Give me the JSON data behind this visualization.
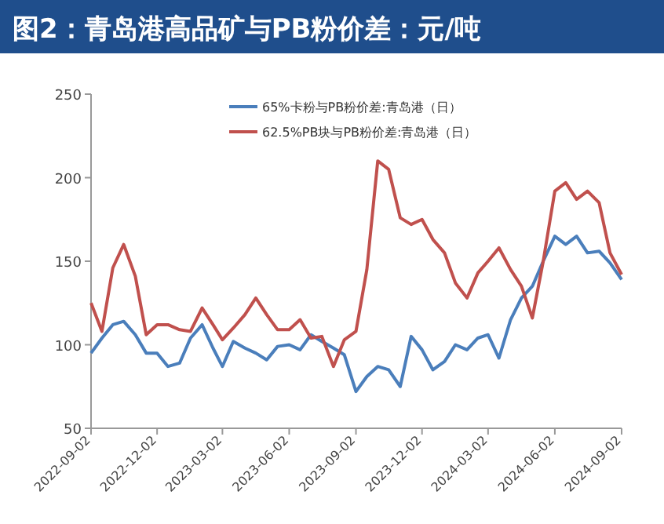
{
  "chart_data": {
    "type": "line",
    "title": "图2：青岛港高品矿与PB粉价差：元/吨",
    "x": [
      "2022-09-02",
      "2022-09-17",
      "2022-10-02",
      "2022-10-17",
      "2022-11-02",
      "2022-11-17",
      "2022-12-02",
      "2022-12-17",
      "2023-01-02",
      "2023-01-17",
      "2023-02-02",
      "2023-02-17",
      "2023-03-02",
      "2023-03-17",
      "2023-04-02",
      "2023-04-17",
      "2023-05-02",
      "2023-05-17",
      "2023-06-02",
      "2023-06-17",
      "2023-07-02",
      "2023-07-17",
      "2023-08-02",
      "2023-08-17",
      "2023-09-02",
      "2023-09-17",
      "2023-10-02",
      "2023-10-17",
      "2023-11-02",
      "2023-11-17",
      "2023-12-02",
      "2023-12-17",
      "2024-01-02",
      "2024-01-17",
      "2024-02-02",
      "2024-02-17",
      "2024-03-02",
      "2024-03-17",
      "2024-04-02",
      "2024-04-17",
      "2024-05-02",
      "2024-05-17",
      "2024-06-02",
      "2024-06-17",
      "2024-07-02",
      "2024-07-17",
      "2024-08-02",
      "2024-08-17",
      "2024-09-02"
    ],
    "series": [
      {
        "name": "65%卡粉与PB粉价差:青岛港（日）",
        "color": "#4a7ebb",
        "values": [
          95,
          104,
          112,
          114,
          106,
          95,
          95,
          87,
          89,
          104,
          112,
          98,
          87,
          102,
          98,
          95,
          91,
          99,
          100,
          97,
          106,
          102,
          98,
          94,
          72,
          81,
          87,
          85,
          75,
          105,
          97,
          85,
          90,
          100,
          97,
          104,
          106,
          92,
          115,
          128,
          135,
          150,
          165,
          160,
          165,
          155,
          156,
          149,
          139
        ]
      },
      {
        "name": "62.5%PB块与PB粉价差:青岛港（日）",
        "color": "#c0504d",
        "values": [
          125,
          108,
          146,
          160,
          141,
          106,
          112,
          112,
          109,
          108,
          122,
          112,
          103,
          110,
          118,
          128,
          118,
          109,
          109,
          115,
          104,
          105,
          87,
          103,
          108,
          145,
          210,
          205,
          176,
          172,
          175,
          163,
          155,
          137,
          128,
          143,
          150,
          158,
          145,
          135,
          116,
          150,
          192,
          197,
          187,
          192,
          185,
          155,
          142
        ]
      }
    ],
    "ylim": [
      50,
      250
    ],
    "yticks": [
      50,
      100,
      150,
      200,
      250
    ],
    "xticks": [
      "2022-09-02",
      "2022-12-02",
      "2023-03-02",
      "2023-06-02",
      "2023-09-02",
      "2023-12-02",
      "2024-03-02",
      "2024-06-02",
      "2024-09-02"
    ],
    "xlim": [
      "2022-09-02",
      "2024-09-02"
    ],
    "legend": "top",
    "grid": false,
    "marker": "none",
    "line_style": "solid"
  }
}
